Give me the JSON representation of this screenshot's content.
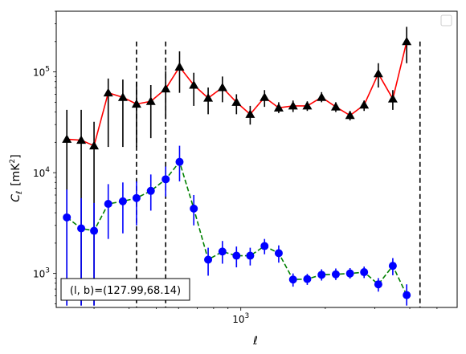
{
  "chart_data": {
    "type": "line",
    "xscale": "log",
    "yscale": "log",
    "xlim": [
      220,
      5900
    ],
    "ylim": [
      460,
      400000
    ],
    "xlabel": "ℓ",
    "ylabel_main": "C",
    "ylabel_sub": "ℓ",
    "ylabel_unit": "[mK",
    "ylabel_unit_sup": "2",
    "ylabel_unit_close": "]",
    "xticks_major": [
      {
        "value": 1000,
        "base": "10",
        "exp": "3"
      }
    ],
    "yticks_major": [
      {
        "value": 1000,
        "base": "10",
        "exp": "3"
      },
      {
        "value": 10000,
        "base": "10",
        "exp": "4"
      },
      {
        "value": 100000,
        "base": "10",
        "exp": "5"
      }
    ],
    "annotation": "(l, b)=(127.99,68.14)",
    "vlines": [
      425,
      540,
      4350
    ],
    "series": [
      {
        "color": "#ff0000",
        "linestyle": "solid",
        "marker": "triangle",
        "marker_color": "#000000",
        "errorbar_color": "#000000",
        "points": [
          {
            "x": 240,
            "y": 21500,
            "lo": 480,
            "hi": 42000
          },
          {
            "x": 270,
            "y": 21000,
            "lo": 480,
            "hi": 42000
          },
          {
            "x": 300,
            "y": 18500,
            "lo": 480,
            "hi": 32000
          },
          {
            "x": 337,
            "y": 62000,
            "lo": 18000,
            "hi": 86000
          },
          {
            "x": 380,
            "y": 56000,
            "lo": 18000,
            "hi": 84000
          },
          {
            "x": 425,
            "y": 48000,
            "lo": 18000,
            "hi": 80000
          },
          {
            "x": 478,
            "y": 51000,
            "lo": 22000,
            "hi": 74000
          },
          {
            "x": 540,
            "y": 68000,
            "lo": 34000,
            "hi": 102000
          },
          {
            "x": 605,
            "y": 112000,
            "lo": 62000,
            "hi": 160000
          },
          {
            "x": 680,
            "y": 74000,
            "lo": 46000,
            "hi": 98000
          },
          {
            "x": 765,
            "y": 55000,
            "lo": 38000,
            "hi": 70000
          },
          {
            "x": 860,
            "y": 70000,
            "lo": 50000,
            "hi": 90000
          },
          {
            "x": 965,
            "y": 50000,
            "lo": 38000,
            "hi": 60000
          },
          {
            "x": 1080,
            "y": 38000,
            "lo": 30000,
            "hi": 46000
          },
          {
            "x": 1215,
            "y": 56000,
            "lo": 45000,
            "hi": 66000
          },
          {
            "x": 1365,
            "y": 44000,
            "lo": 39000,
            "hi": 50000
          },
          {
            "x": 1535,
            "y": 46000,
            "lo": 40000,
            "hi": 52000
          },
          {
            "x": 1725,
            "y": 46000,
            "lo": 41000,
            "hi": 51000
          },
          {
            "x": 1940,
            "y": 56000,
            "lo": 50000,
            "hi": 63000
          },
          {
            "x": 2180,
            "y": 45000,
            "lo": 40000,
            "hi": 50000
          },
          {
            "x": 2450,
            "y": 37000,
            "lo": 33000,
            "hi": 41000
          },
          {
            "x": 2750,
            "y": 47000,
            "lo": 41000,
            "hi": 52000
          },
          {
            "x": 3090,
            "y": 96000,
            "lo": 70000,
            "hi": 122000
          },
          {
            "x": 3480,
            "y": 54000,
            "lo": 42000,
            "hi": 66000
          },
          {
            "x": 3900,
            "y": 200000,
            "lo": 122000,
            "hi": 280000
          }
        ]
      },
      {
        "color": "#008000",
        "linestyle": "dashed",
        "marker": "circle",
        "marker_color": "#0000ff",
        "errorbar_color": "#0000ff",
        "points": [
          {
            "x": 240,
            "y": 3600,
            "lo": 480,
            "hi": 6800
          },
          {
            "x": 270,
            "y": 2800,
            "lo": 480,
            "hi": 5600
          },
          {
            "x": 300,
            "y": 2650,
            "lo": 480,
            "hi": 5000
          },
          {
            "x": 337,
            "y": 4900,
            "lo": 2200,
            "hi": 7700
          },
          {
            "x": 380,
            "y": 5200,
            "lo": 2500,
            "hi": 8000
          },
          {
            "x": 425,
            "y": 5600,
            "lo": 3000,
            "hi": 8200
          },
          {
            "x": 478,
            "y": 6600,
            "lo": 4200,
            "hi": 9600
          },
          {
            "x": 540,
            "y": 8600,
            "lo": 5800,
            "hi": 11500
          },
          {
            "x": 605,
            "y": 12800,
            "lo": 8200,
            "hi": 18500
          },
          {
            "x": 680,
            "y": 4400,
            "lo": 3000,
            "hi": 6000
          },
          {
            "x": 765,
            "y": 1370,
            "lo": 950,
            "hi": 1800
          },
          {
            "x": 860,
            "y": 1650,
            "lo": 1250,
            "hi": 2100
          },
          {
            "x": 965,
            "y": 1500,
            "lo": 1150,
            "hi": 1850
          },
          {
            "x": 1080,
            "y": 1500,
            "lo": 1200,
            "hi": 1800
          },
          {
            "x": 1215,
            "y": 1870,
            "lo": 1550,
            "hi": 2200
          },
          {
            "x": 1365,
            "y": 1590,
            "lo": 1280,
            "hi": 1900
          },
          {
            "x": 1535,
            "y": 870,
            "lo": 740,
            "hi": 1000
          },
          {
            "x": 1725,
            "y": 880,
            "lo": 770,
            "hi": 990
          },
          {
            "x": 1940,
            "y": 970,
            "lo": 850,
            "hi": 1100
          },
          {
            "x": 2180,
            "y": 980,
            "lo": 860,
            "hi": 1120
          },
          {
            "x": 2450,
            "y": 1000,
            "lo": 890,
            "hi": 1130
          },
          {
            "x": 2750,
            "y": 1030,
            "lo": 900,
            "hi": 1170
          },
          {
            "x": 3090,
            "y": 780,
            "lo": 660,
            "hi": 900
          },
          {
            "x": 3480,
            "y": 1190,
            "lo": 960,
            "hi": 1420
          },
          {
            "x": 3900,
            "y": 610,
            "lo": 480,
            "hi": 780
          }
        ]
      }
    ]
  }
}
